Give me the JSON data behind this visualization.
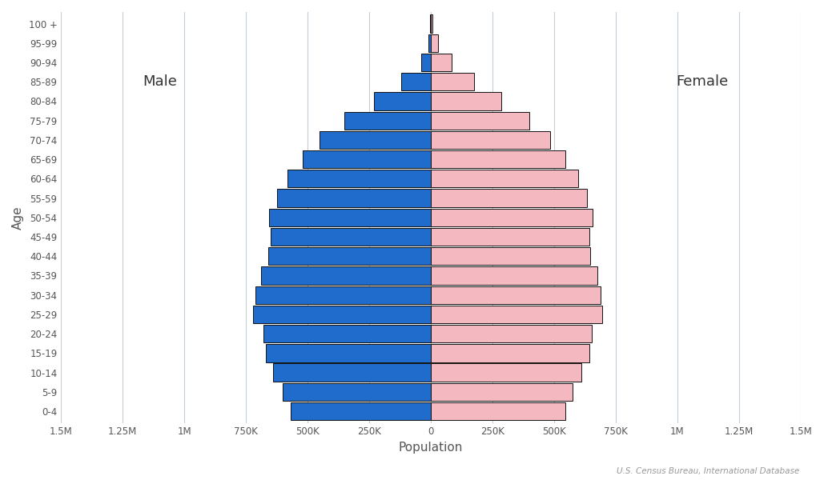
{
  "age_groups": [
    "0-4",
    "5-9",
    "10-14",
    "15-19",
    "20-24",
    "25-29",
    "30-34",
    "35-39",
    "40-44",
    "45-49",
    "50-54",
    "55-59",
    "60-64",
    "65-69",
    "70-74",
    "75-79",
    "80-84",
    "85-89",
    "90-94",
    "95-99",
    "100 +"
  ],
  "male": [
    570000,
    600000,
    640000,
    670000,
    680000,
    720000,
    710000,
    690000,
    660000,
    650000,
    655000,
    625000,
    580000,
    520000,
    450000,
    350000,
    230000,
    120000,
    40000,
    10000,
    2500
  ],
  "female": [
    545000,
    575000,
    612000,
    642000,
    652000,
    695000,
    688000,
    675000,
    648000,
    645000,
    658000,
    635000,
    597000,
    545000,
    485000,
    400000,
    285000,
    175000,
    85000,
    30000,
    7000
  ],
  "male_color": "#1f6ccc",
  "female_color": "#f4b8c1",
  "bar_edge_color": "#111111",
  "bar_edge_width": 0.7,
  "grid_color": "#c5cdd8",
  "background_color": "#ffffff",
  "xlabel": "Population",
  "ylabel": "Age",
  "male_label": "Male",
  "female_label": "Female",
  "source_text": "U.S. Census Bureau, International Database",
  "xlim": 1500000,
  "xtick_values": [
    -1500000,
    -1250000,
    -1000000,
    -750000,
    -500000,
    -250000,
    0,
    250000,
    500000,
    750000,
    1000000,
    1250000,
    1500000
  ],
  "xtick_labels": [
    "1.5M",
    "1.25M",
    "1M",
    "750K",
    "500K",
    "250K",
    "0",
    "250K",
    "500K",
    "750K",
    "1M",
    "1.25M",
    "1.5M"
  ]
}
